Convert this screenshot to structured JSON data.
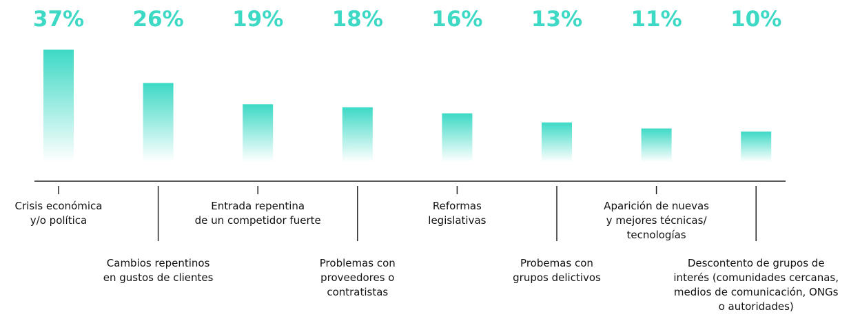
{
  "chart_data": {
    "type": "bar",
    "categories": [
      "Crisis económica\ny/o política",
      "Cambios repentinos\nen gustos de clientes",
      "Entrada repentina\nde un competidor fuerte",
      "Problemas con\nproveedores o\ncontratistas",
      "Reformas\nlegislativas",
      "Probemas con\ngrupos delictivos",
      "Aparición de nuevas\ny mejores técnicas/\ntecnologías",
      "Descontento de grupos de\ninterés (comunidades cercanas,\nmedios de comunicación, ONGs\no autoridades)"
    ],
    "values": [
      37,
      26,
      19,
      18,
      16,
      13,
      11,
      10
    ],
    "value_labels": [
      "37%",
      "26%",
      "19%",
      "18%",
      "16%",
      "13%",
      "11%",
      "10%"
    ],
    "color": "#3dd9c5"
  }
}
